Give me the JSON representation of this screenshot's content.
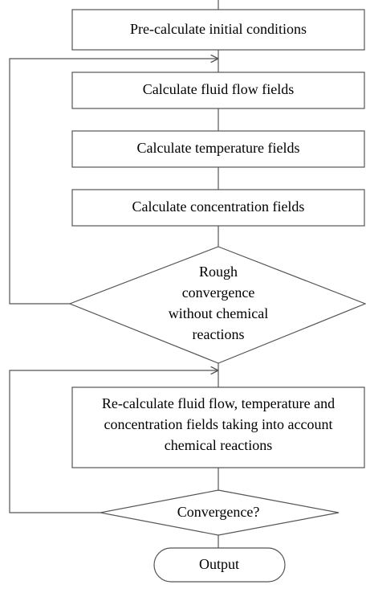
{
  "nodes": [
    {
      "lines": [
        "Pre-calculate initial conditions"
      ]
    },
    {
      "lines": [
        "Calculate fluid flow  fields"
      ]
    },
    {
      "lines": [
        "Calculate temperature fields"
      ]
    },
    {
      "lines": [
        "Calculate concentration fields"
      ]
    },
    {
      "lines": [
        "Rough",
        "convergence",
        "without chemical",
        "reactions"
      ]
    },
    {
      "lines": [
        "Re-calculate fluid flow, temperature and",
        "concentration fields taking into account",
        "chemical reactions"
      ]
    },
    {
      "lines": [
        "Convergence?"
      ]
    },
    {
      "lines": [
        "Output"
      ]
    }
  ]
}
